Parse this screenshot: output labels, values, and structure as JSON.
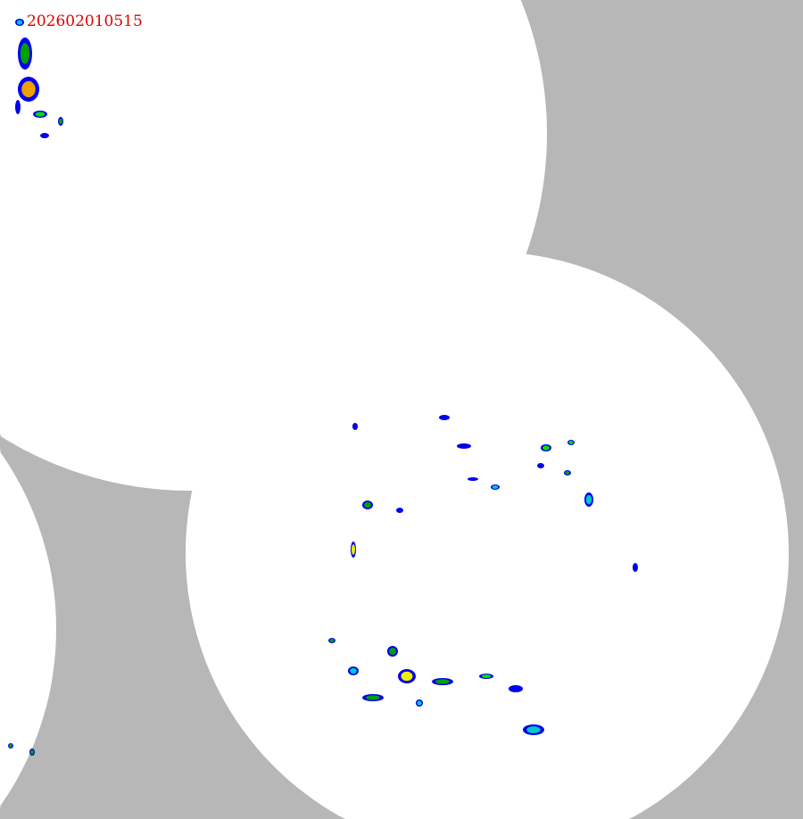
{
  "timestamp": "202602010515",
  "colors": {
    "background_outside_coverage": "#b7b7b7",
    "coverage": "#ffffff",
    "timestamp_text": "#e00000",
    "echo_scale": [
      "#0000f0",
      "#3c8cf0",
      "#00c8c8",
      "#00e000",
      "#00a000",
      "#f0f000",
      "#f0a000",
      "#f00000"
    ]
  }
}
